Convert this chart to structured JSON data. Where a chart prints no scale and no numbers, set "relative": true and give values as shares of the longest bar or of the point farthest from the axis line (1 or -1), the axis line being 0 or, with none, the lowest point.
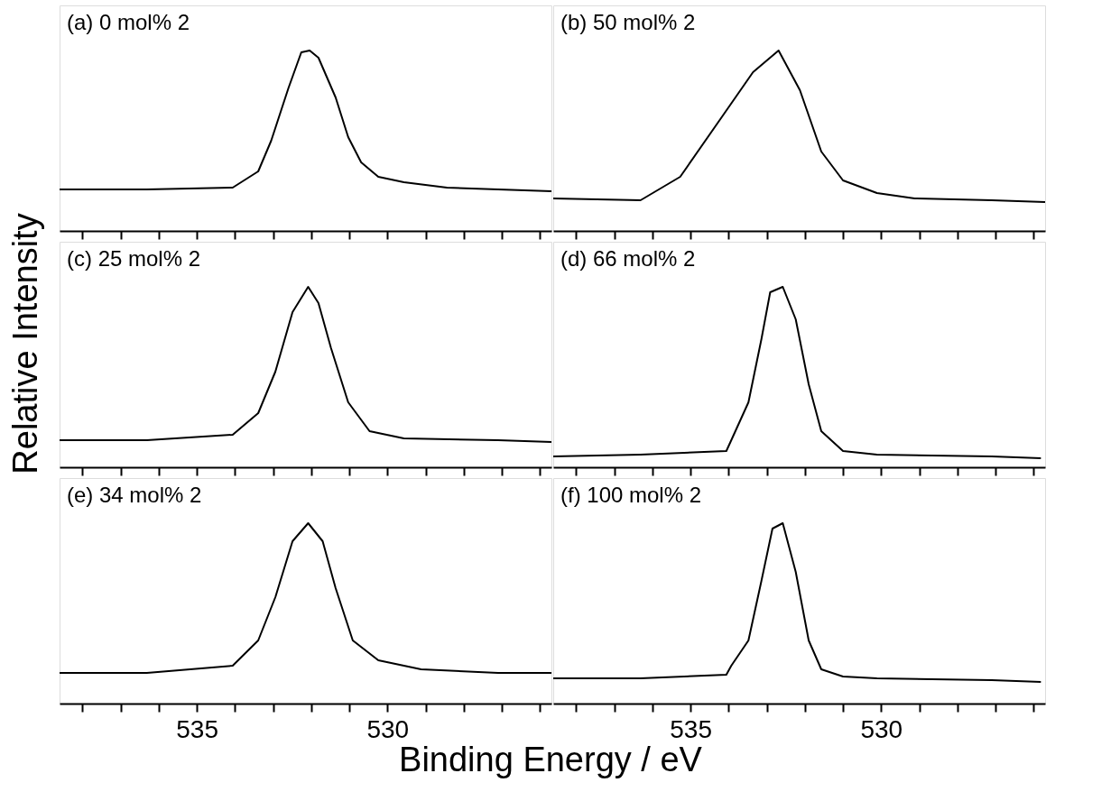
{
  "chart_data": [
    {
      "type": "line",
      "relative": true,
      "color": "#000000",
      "marker": "none",
      "line_style": "solid",
      "tick_labels": false,
      "annotations": [
        "(a) 0 mol% 2"
      ],
      "xlim": [
        538.6,
        525.7
      ],
      "xticks": [
        {
          "value": 538,
          "label": null
        },
        {
          "value": 537,
          "label": null
        },
        {
          "value": 536,
          "label": null
        },
        {
          "value": 535,
          "label": null
        },
        {
          "value": 534,
          "label": null
        },
        {
          "value": 533,
          "label": null
        },
        {
          "value": 532,
          "label": null
        },
        {
          "value": 531,
          "label": null
        },
        {
          "value": 530,
          "label": null
        },
        {
          "value": 529,
          "label": null
        },
        {
          "value": 528,
          "label": null
        },
        {
          "value": 527,
          "label": null
        },
        {
          "value": 526,
          "label": null
        }
      ],
      "x": [
        538.6,
        536.31,
        534.06,
        533.39,
        533.05,
        532.6,
        532.26,
        532.04,
        531.81,
        531.36,
        531.03,
        530.69,
        530.24,
        529.57,
        528.44,
        527.1,
        525.7
      ],
      "values": [
        0.23,
        0.23,
        0.24,
        0.33,
        0.5,
        0.79,
        0.99,
        1.0,
        0.96,
        0.74,
        0.52,
        0.38,
        0.3,
        0.27,
        0.24,
        0.23,
        0.22
      ]
    },
    {
      "type": "line",
      "relative": true,
      "color": "#000000",
      "marker": "none",
      "line_style": "solid",
      "tick_labels": false,
      "annotations": [
        "(b) 50 mol% 2"
      ],
      "xlim": [
        538.6,
        525.7
      ],
      "xticks": [
        {
          "value": 538,
          "label": null
        },
        {
          "value": 537,
          "label": null
        },
        {
          "value": 536,
          "label": null
        },
        {
          "value": 535,
          "label": null
        },
        {
          "value": 534,
          "label": null
        },
        {
          "value": 533,
          "label": null
        },
        {
          "value": 532,
          "label": null
        },
        {
          "value": 531,
          "label": null
        },
        {
          "value": 530,
          "label": null
        },
        {
          "value": 529,
          "label": null
        },
        {
          "value": 528,
          "label": null
        },
        {
          "value": 527,
          "label": null
        },
        {
          "value": 526,
          "label": null
        }
      ],
      "x": [
        538.6,
        536.31,
        535.27,
        534.15,
        533.36,
        532.69,
        532.13,
        531.57,
        531.0,
        530.11,
        529.12,
        527.1,
        525.7
      ],
      "values": [
        0.18,
        0.17,
        0.3,
        0.64,
        0.88,
        1.0,
        0.78,
        0.44,
        0.28,
        0.21,
        0.18,
        0.17,
        0.16
      ]
    },
    {
      "type": "line",
      "relative": true,
      "color": "#000000",
      "marker": "none",
      "line_style": "solid",
      "tick_labels": false,
      "ylabel": "Relative Intensity",
      "annotations": [
        "(c) 25 mol% 2"
      ],
      "xlim": [
        538.6,
        525.7
      ],
      "xticks": [
        {
          "value": 538,
          "label": null
        },
        {
          "value": 537,
          "label": null
        },
        {
          "value": 536,
          "label": null
        },
        {
          "value": 535,
          "label": null
        },
        {
          "value": 534,
          "label": null
        },
        {
          "value": 533,
          "label": null
        },
        {
          "value": 532,
          "label": null
        },
        {
          "value": 531,
          "label": null
        },
        {
          "value": 530,
          "label": null
        },
        {
          "value": 529,
          "label": null
        },
        {
          "value": 528,
          "label": null
        },
        {
          "value": 527,
          "label": null
        },
        {
          "value": 526,
          "label": null
        }
      ],
      "x": [
        538.6,
        536.31,
        534.06,
        533.39,
        532.94,
        532.49,
        532.08,
        531.81,
        531.48,
        531.03,
        530.47,
        529.57,
        527.1,
        525.7
      ],
      "values": [
        0.15,
        0.15,
        0.18,
        0.3,
        0.53,
        0.86,
        1.0,
        0.91,
        0.66,
        0.36,
        0.2,
        0.16,
        0.15,
        0.14
      ]
    },
    {
      "type": "line",
      "relative": true,
      "color": "#000000",
      "marker": "none",
      "line_style": "solid",
      "tick_labels": false,
      "annotations": [
        "(d) 66 mol% 2"
      ],
      "xlim": [
        538.6,
        525.7
      ],
      "xticks": [
        {
          "value": 538,
          "label": null
        },
        {
          "value": 537,
          "label": null
        },
        {
          "value": 536,
          "label": null
        },
        {
          "value": 535,
          "label": null
        },
        {
          "value": 534,
          "label": null
        },
        {
          "value": 533,
          "label": null
        },
        {
          "value": 532,
          "label": null
        },
        {
          "value": 531,
          "label": null
        },
        {
          "value": 530,
          "label": null
        },
        {
          "value": 529,
          "label": null
        },
        {
          "value": 528,
          "label": null
        },
        {
          "value": 527,
          "label": null
        },
        {
          "value": 526,
          "label": null
        }
      ],
      "x": [
        538.6,
        536.31,
        534.06,
        533.93,
        533.48,
        533.14,
        532.91,
        532.58,
        532.24,
        531.9,
        531.57,
        531.0,
        530.11,
        527.1,
        525.81
      ],
      "values": [
        0.06,
        0.07,
        0.09,
        0.15,
        0.36,
        0.71,
        0.97,
        1.0,
        0.82,
        0.46,
        0.2,
        0.09,
        0.07,
        0.06,
        0.05
      ]
    },
    {
      "type": "line",
      "relative": true,
      "color": "#000000",
      "marker": "none",
      "line_style": "solid",
      "tick_labels": "x",
      "xlabel": "Binding Energy / eV",
      "annotations": [
        "(e) 34 mol% 2"
      ],
      "xlim": [
        538.6,
        525.7
      ],
      "xticks": [
        {
          "value": 538,
          "label": null
        },
        {
          "value": 537,
          "label": null
        },
        {
          "value": 536,
          "label": null
        },
        {
          "value": 535,
          "label": "535"
        },
        {
          "value": 534,
          "label": null
        },
        {
          "value": 533,
          "label": null
        },
        {
          "value": 532,
          "label": null
        },
        {
          "value": 531,
          "label": null
        },
        {
          "value": 530,
          "label": "530"
        },
        {
          "value": 529,
          "label": null
        },
        {
          "value": 528,
          "label": null
        },
        {
          "value": 527,
          "label": null
        },
        {
          "value": 526,
          "label": null
        }
      ],
      "x": [
        538.6,
        536.31,
        534.06,
        533.39,
        532.94,
        532.49,
        532.08,
        531.7,
        531.36,
        530.91,
        530.24,
        529.12,
        527.1,
        525.7
      ],
      "values": [
        0.17,
        0.17,
        0.21,
        0.35,
        0.59,
        0.9,
        1.0,
        0.9,
        0.64,
        0.35,
        0.24,
        0.19,
        0.17,
        0.17
      ]
    },
    {
      "type": "line",
      "relative": true,
      "color": "#000000",
      "marker": "none",
      "line_style": "solid",
      "tick_labels": "x",
      "annotations": [
        "(f) 100 mol% 2"
      ],
      "xlim": [
        538.6,
        525.7
      ],
      "xticks": [
        {
          "value": 538,
          "label": null
        },
        {
          "value": 537,
          "label": null
        },
        {
          "value": 536,
          "label": null
        },
        {
          "value": 535,
          "label": "535"
        },
        {
          "value": 534,
          "label": null
        },
        {
          "value": 533,
          "label": null
        },
        {
          "value": 532,
          "label": null
        },
        {
          "value": 531,
          "label": null
        },
        {
          "value": 530,
          "label": "530"
        },
        {
          "value": 529,
          "label": null
        },
        {
          "value": 528,
          "label": null
        },
        {
          "value": 527,
          "label": null
        },
        {
          "value": 526,
          "label": null
        }
      ],
      "x": [
        538.6,
        536.31,
        534.06,
        533.93,
        533.48,
        533.14,
        532.85,
        532.58,
        532.24,
        531.9,
        531.57,
        531.0,
        530.11,
        527.1,
        525.81
      ],
      "values": [
        0.14,
        0.14,
        0.16,
        0.21,
        0.35,
        0.68,
        0.97,
        1.0,
        0.73,
        0.35,
        0.19,
        0.15,
        0.14,
        0.13,
        0.12
      ]
    }
  ]
}
